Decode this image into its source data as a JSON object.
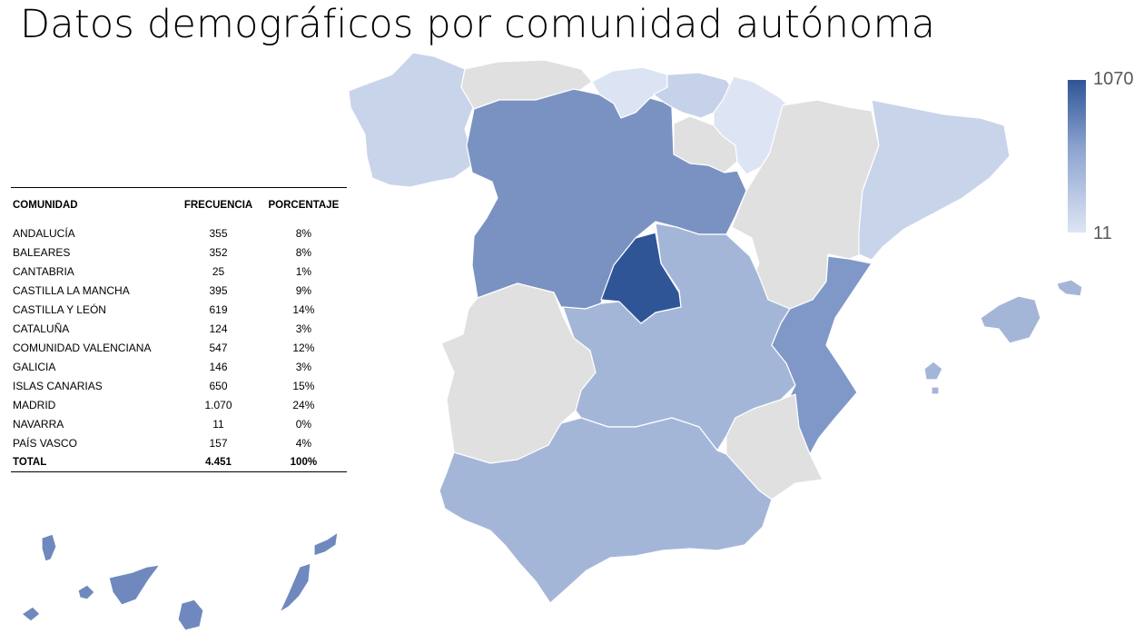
{
  "title": "Datos demográficos por comunidad autónoma",
  "table": {
    "headers": [
      "COMUNIDAD",
      "FRECUENCIA",
      "PORCENTAJE"
    ],
    "rows": [
      {
        "comunidad": "ANDALUCÍA",
        "frecuencia": "355",
        "porcentaje": "8%"
      },
      {
        "comunidad": "BALEARES",
        "frecuencia": "352",
        "porcentaje": "8%"
      },
      {
        "comunidad": "CANTABRIA",
        "frecuencia": "25",
        "porcentaje": "1%"
      },
      {
        "comunidad": "CASTILLA LA MANCHA",
        "frecuencia": "395",
        "porcentaje": "9%"
      },
      {
        "comunidad": "CASTILLA Y LEÓN",
        "frecuencia": "619",
        "porcentaje": "14%"
      },
      {
        "comunidad": "CATALUÑA",
        "frecuencia": "124",
        "porcentaje": "3%"
      },
      {
        "comunidad": "COMUNIDAD VALENCIANA",
        "frecuencia": "547",
        "porcentaje": "12%"
      },
      {
        "comunidad": "GALICIA",
        "frecuencia": "146",
        "porcentaje": "3%"
      },
      {
        "comunidad": "ISLAS CANARIAS",
        "frecuencia": "650",
        "porcentaje": "15%"
      },
      {
        "comunidad": "MADRID",
        "frecuencia": "1.070",
        "porcentaje": "24%"
      },
      {
        "comunidad": "NAVARRA",
        "frecuencia": "11",
        "porcentaje": "0%"
      },
      {
        "comunidad": "PAÍS VASCO",
        "frecuencia": "157",
        "porcentaje": "4%"
      }
    ],
    "total": {
      "comunidad": "TOTAL",
      "frecuencia": "4.451",
      "porcentaje": "100%"
    }
  },
  "legend": {
    "max": "1070",
    "min": "11"
  },
  "colors": {
    "madrid": "#2f5597",
    "castilla_leon": "#7a92c2",
    "valenciana": "#7f98c8",
    "canarias": "#6f89bf",
    "castilla_mancha": "#a4b6d8",
    "andalucia": "#a4b6d8",
    "baleares": "#a4b6d8",
    "galicia": "#c8d4ea",
    "cataluna": "#c8d4ea",
    "pais_vasco": "#c6d2e9",
    "cantabria": "#dce4f3",
    "navarra": "#dde5f4",
    "no_data": "#e0e0e0"
  }
}
